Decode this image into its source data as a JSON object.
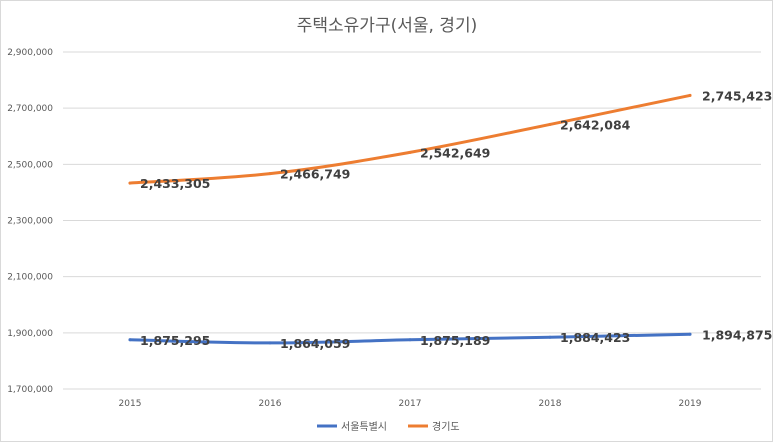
{
  "chart_data": {
    "type": "line",
    "title": "주택소유가구(서울, 경기)",
    "categories": [
      "2015",
      "2016",
      "2017",
      "2018",
      "2019"
    ],
    "ylim": [
      1700000,
      2900000
    ],
    "y_ticks": [
      1700000,
      1900000,
      2100000,
      2300000,
      2500000,
      2700000,
      2900000
    ],
    "y_tick_labels": [
      "1,700,000",
      "1,900,000",
      "2,100,000",
      "2,300,000",
      "2,500,000",
      "2,700,000",
      "2,900,000"
    ],
    "grid": true,
    "legend_position": "bottom",
    "series": [
      {
        "name": "서울특별시",
        "color": "#4472c4",
        "values": [
          1875295,
          1864059,
          1875189,
          1884423,
          1894875
        ],
        "labels": [
          "1,875,295",
          "1,864,059",
          "1,875,189",
          "1,884,423",
          "1,894,875"
        ]
      },
      {
        "name": "경기도",
        "color": "#ed7d31",
        "values": [
          2433305,
          2466749,
          2542649,
          2642084,
          2745423
        ],
        "labels": [
          "2,433,305",
          "2,466,749",
          "2,542,649",
          "2,642,084",
          "2,745,423"
        ]
      }
    ]
  }
}
